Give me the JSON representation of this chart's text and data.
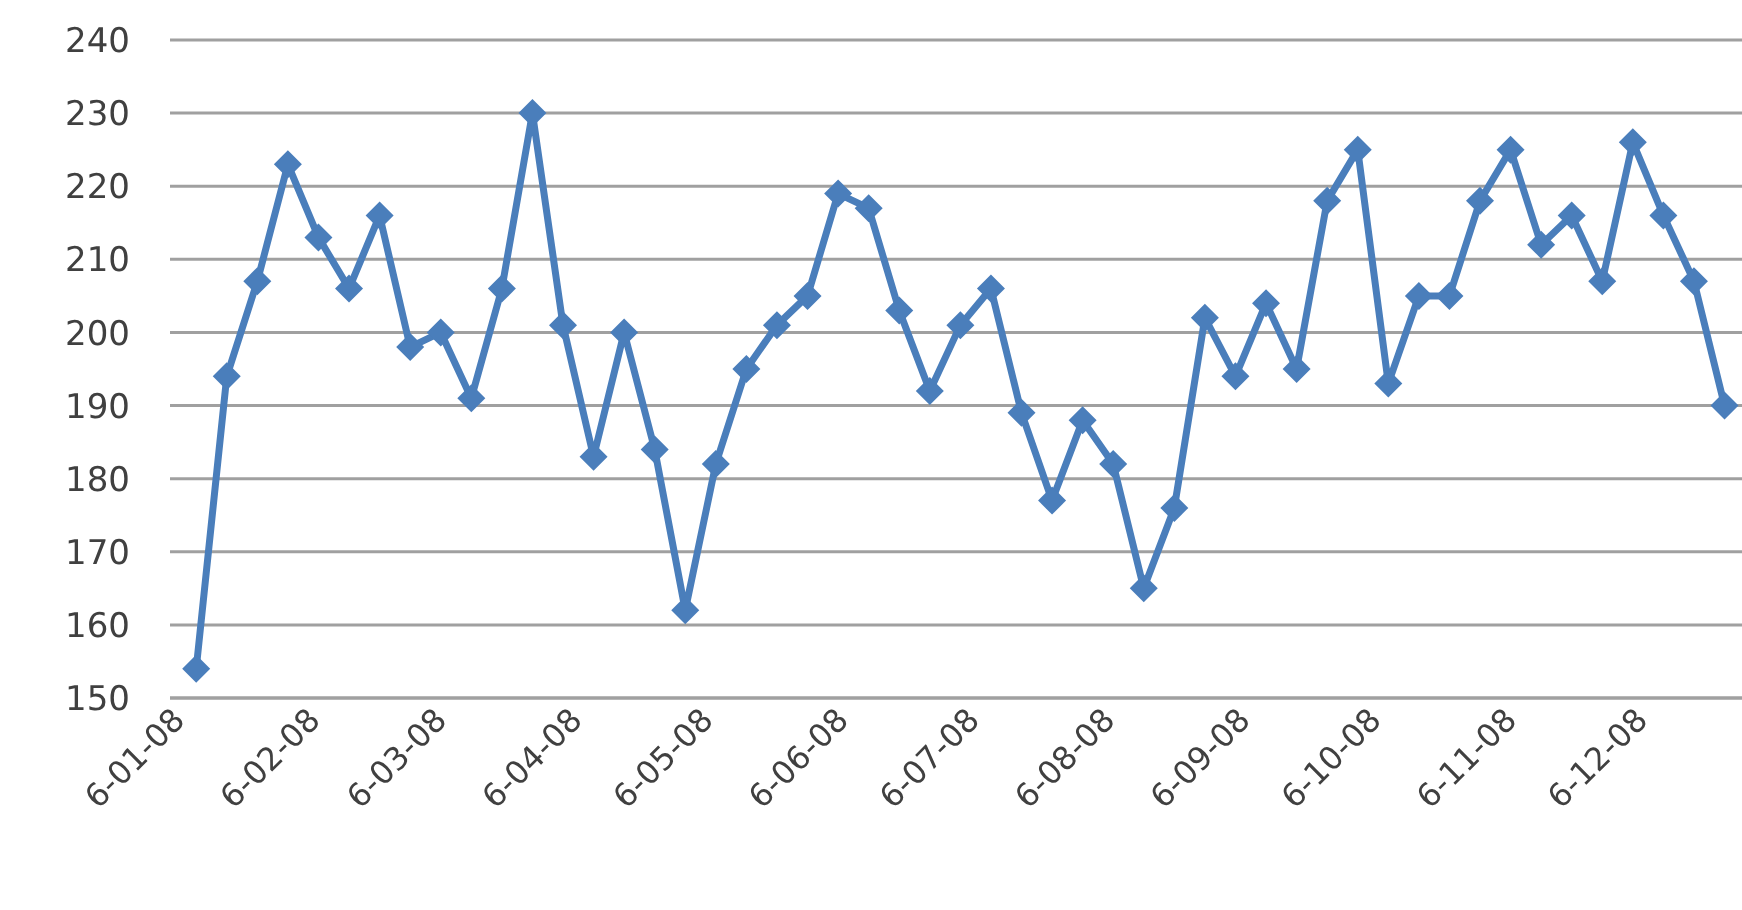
{
  "chart_data": {
    "type": "line",
    "x": [
      "2008-01-10",
      "2008-01-17",
      "2008-01-24",
      "2008-01-31",
      "2008-02-07",
      "2008-02-14",
      "2008-02-21",
      "2008-02-28",
      "2008-03-06",
      "2008-03-13",
      "2008-03-20",
      "2008-03-27",
      "2008-04-03",
      "2008-04-10",
      "2008-04-17",
      "2008-04-24",
      "2008-05-01",
      "2008-05-08",
      "2008-05-15",
      "2008-05-22",
      "2008-05-29",
      "2008-06-05",
      "2008-06-12",
      "2008-06-19",
      "2008-06-26",
      "2008-07-03",
      "2008-07-10",
      "2008-07-17",
      "2008-07-24",
      "2008-07-31",
      "2008-08-07",
      "2008-08-14",
      "2008-08-21",
      "2008-08-28",
      "2008-09-04",
      "2008-09-11",
      "2008-09-18",
      "2008-09-25",
      "2008-10-02",
      "2008-10-09",
      "2008-10-16",
      "2008-10-23",
      "2008-10-30",
      "2008-11-06",
      "2008-11-13",
      "2008-11-20",
      "2008-11-27",
      "2008-12-04",
      "2008-12-11",
      "2008-12-18",
      "2008-12-25"
    ],
    "series": [
      {
        "color": "#4a7ebb",
        "values": [
          154,
          194,
          207,
          223,
          213,
          206,
          216,
          198,
          200,
          191,
          206,
          230,
          201,
          183,
          200,
          184,
          162,
          182,
          195,
          201,
          205,
          219,
          217,
          203,
          192,
          201,
          206,
          189,
          177,
          188,
          182,
          165,
          176,
          202,
          194,
          204,
          195,
          218,
          225,
          193,
          205,
          205,
          218,
          225,
          212,
          216,
          207,
          226,
          216,
          207,
          190
        ]
      }
    ],
    "xlim": [
      "2008-01-04",
      "2008-12-29"
    ],
    "xticks": [
      {
        "value": "2008-01-06",
        "label": "6-01-08"
      },
      {
        "value": "2008-02-06",
        "label": "6-02-08"
      },
      {
        "value": "2008-03-06",
        "label": "6-03-08"
      },
      {
        "value": "2008-04-06",
        "label": "6-04-08"
      },
      {
        "value": "2008-05-06",
        "label": "6-05-08"
      },
      {
        "value": "2008-06-06",
        "label": "6-06-08"
      },
      {
        "value": "2008-07-06",
        "label": "6-07-08"
      },
      {
        "value": "2008-08-06",
        "label": "6-08-08"
      },
      {
        "value": "2008-09-06",
        "label": "6-09-08"
      },
      {
        "value": "2008-10-06",
        "label": "6-10-08"
      },
      {
        "value": "2008-11-06",
        "label": "6-11-08"
      },
      {
        "value": "2008-12-06",
        "label": "6-12-08"
      }
    ],
    "ylim": [
      150,
      240
    ],
    "yticks": [
      150,
      160,
      170,
      180,
      190,
      200,
      210,
      220,
      230,
      240
    ],
    "grid": "y",
    "marker": "diamond",
    "line_style": "solid",
    "legend": false
  }
}
